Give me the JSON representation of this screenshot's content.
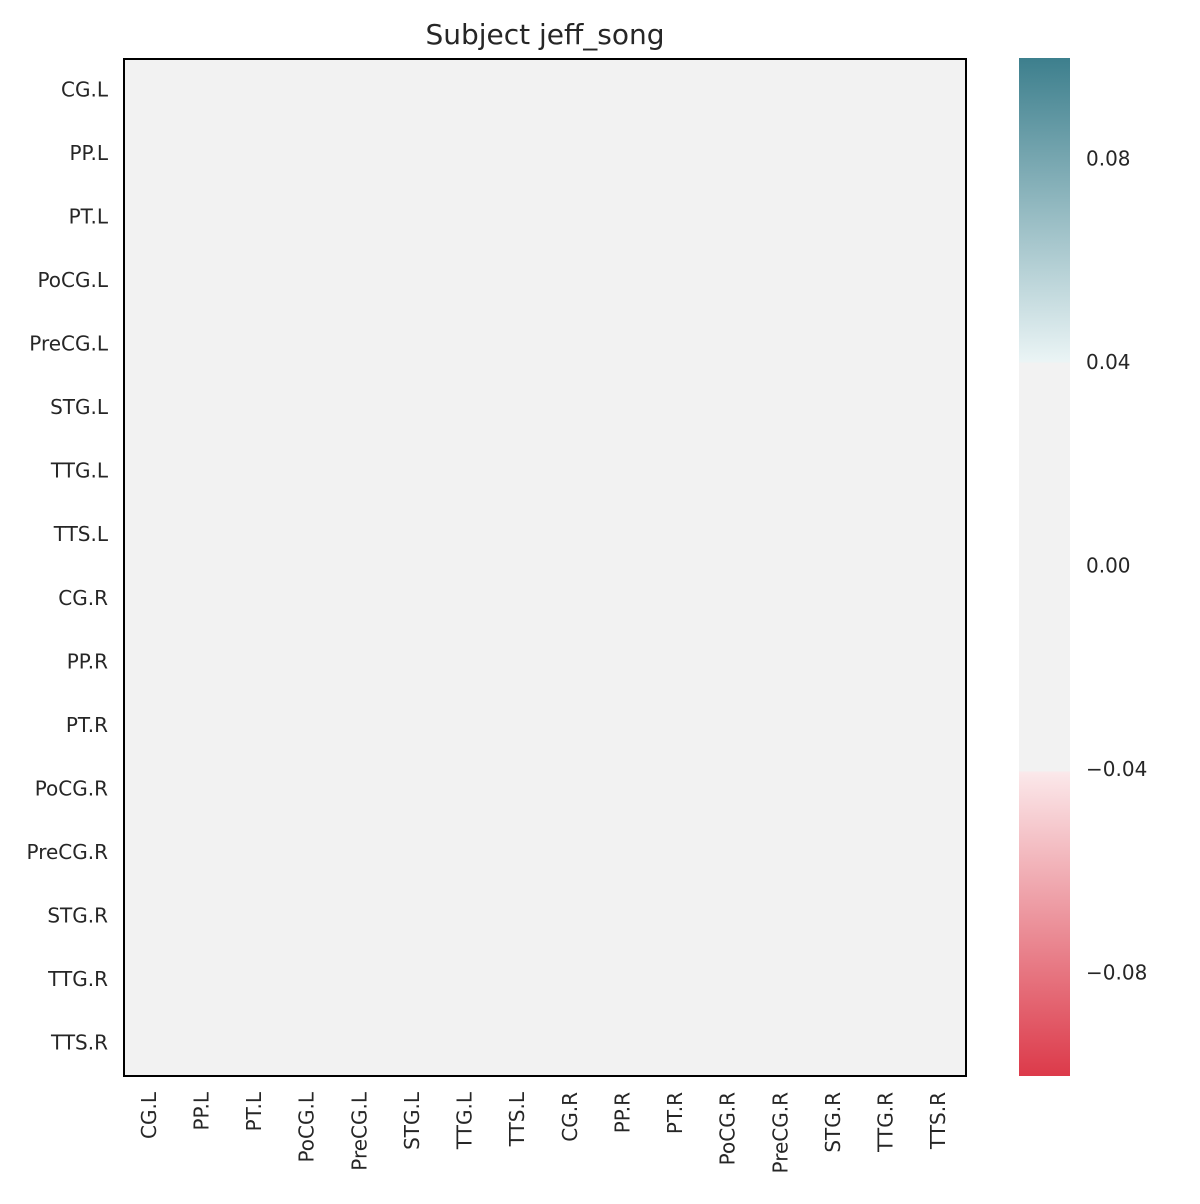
{
  "chart_data": {
    "type": "heatmap",
    "title": "Subject jeff_song",
    "xlabel": "",
    "ylabel": "",
    "rows": [
      "CG.L",
      "PP.L",
      "PT.L",
      "PoCG.L",
      "PreCG.L",
      "STG.L",
      "TTG.L",
      "TTS.L",
      "CG.R",
      "PP.R",
      "PT.R",
      "PoCG.R",
      "PreCG.R",
      "STG.R",
      "TTG.R",
      "TTS.R"
    ],
    "columns": [
      "CG.L",
      "PP.L",
      "PT.L",
      "PoCG.L",
      "PreCG.L",
      "STG.L",
      "TTG.L",
      "TTS.L",
      "CG.R",
      "PP.R",
      "PT.R",
      "PoCG.R",
      "PreCG.R",
      "STG.R",
      "TTG.R",
      "TTS.R"
    ],
    "values": [
      [
        0,
        0,
        0,
        0,
        0,
        0,
        0,
        0,
        0,
        0,
        0,
        0,
        0,
        0,
        0,
        0
      ],
      [
        0,
        0,
        0,
        0,
        0,
        0,
        0,
        0,
        0,
        0,
        0,
        0,
        0,
        0,
        0,
        0
      ],
      [
        0,
        0,
        0,
        0,
        0,
        0,
        0,
        0,
        0,
        0,
        0,
        0,
        0,
        0,
        0,
        0
      ],
      [
        0,
        0,
        0,
        0,
        0,
        0,
        0,
        0,
        0,
        0,
        0,
        0,
        0,
        0,
        0,
        0
      ],
      [
        0,
        0,
        0,
        0,
        0,
        0,
        0,
        0,
        0,
        0,
        0,
        0,
        0,
        0,
        0,
        0
      ],
      [
        0,
        0,
        0,
        0,
        0,
        0,
        0,
        0,
        0,
        0,
        0,
        0,
        0,
        0,
        0,
        0
      ],
      [
        0,
        0,
        0,
        0,
        0,
        0,
        0,
        0,
        0,
        0,
        0,
        0,
        0,
        0,
        0,
        0
      ],
      [
        0,
        0,
        0,
        0,
        0,
        0,
        0,
        0,
        0,
        0,
        0,
        0,
        0,
        0,
        0,
        0
      ],
      [
        0,
        0,
        0,
        0,
        0,
        0,
        0,
        0,
        0,
        0,
        0,
        0,
        0,
        0,
        0,
        0
      ],
      [
        0,
        0,
        0,
        0,
        0,
        0,
        0,
        0,
        0,
        0,
        0,
        0,
        0,
        0,
        0,
        0
      ],
      [
        0,
        0,
        0,
        0,
        0,
        0,
        0,
        0,
        0,
        0,
        0,
        0,
        0,
        0,
        0,
        0
      ],
      [
        0,
        0,
        0,
        0,
        0,
        0,
        0,
        0,
        0,
        0,
        0,
        0,
        0,
        0,
        0,
        0
      ],
      [
        0,
        0,
        0,
        0,
        0,
        0,
        0,
        0,
        0,
        0,
        0,
        0,
        0,
        0,
        0,
        0
      ],
      [
        0,
        0,
        0,
        0,
        0,
        0,
        0,
        0,
        0,
        0,
        0,
        0,
        0,
        0,
        0,
        0
      ],
      [
        0,
        0,
        0,
        0,
        0,
        0,
        0,
        0,
        0,
        0,
        0,
        0,
        0,
        0,
        0,
        0
      ],
      [
        0,
        0,
        0,
        0,
        0,
        0,
        0,
        0,
        0,
        0,
        0,
        0,
        0,
        0,
        0,
        0
      ]
    ],
    "colorbar": {
      "vmin": -0.1,
      "vmax": 0.1,
      "neutral_range": [
        -0.04,
        0.04
      ],
      "ticks": [
        0.08,
        0.04,
        0.0,
        -0.04,
        -0.08
      ],
      "tick_labels": [
        "0.08",
        "0.04",
        "0.00",
        "−0.04",
        "−0.08"
      ],
      "colors": {
        "max": "#3d7f8d",
        "upper_near_neutral": "#eaf4f5",
        "neutral": "#f2f2f2",
        "lower_near_neutral": "#fbe8ea",
        "min": "#dc3a4a"
      }
    },
    "grid": false,
    "legend": "colorbar-right"
  }
}
